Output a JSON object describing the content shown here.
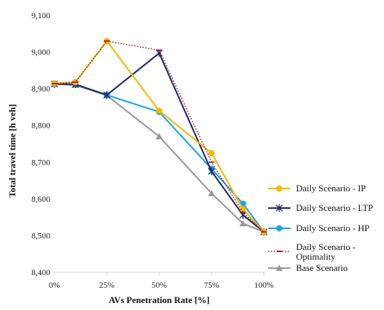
{
  "chart_data": {
    "type": "line",
    "title": "",
    "xlabel": "AVs Penetration Rate [%]",
    "ylabel": "Total travel time [h veh]",
    "ylim": [
      8400,
      9100
    ],
    "y_ticks": [
      "8,400",
      "8,500",
      "8,600",
      "8,700",
      "8,800",
      "8,900",
      "9,000",
      "9,100"
    ],
    "x_ticks": [
      "0%",
      "25%",
      "50%",
      "75%",
      "100%"
    ],
    "xlim": [
      0,
      100
    ],
    "grid": false,
    "legend_position": "right",
    "series": [
      {
        "name": "Daily Scenario - IP",
        "color": "#f5b800",
        "marker": "circle",
        "dash": "solid",
        "x": [
          0,
          10,
          25,
          50,
          75,
          90,
          100
        ],
        "values": [
          8915,
          8918,
          9030,
          8840,
          8725,
          8572,
          8510
        ]
      },
      {
        "name": "Daily Scenario - LTP",
        "color": "#1a2a6c",
        "marker": "star",
        "dash": "solid",
        "x": [
          0,
          10,
          25,
          50,
          75,
          90,
          100
        ],
        "values": [
          8913,
          8912,
          8883,
          8997,
          8675,
          8556,
          8510
        ]
      },
      {
        "name": "Daily Scenario - HP",
        "color": "#1aa7e8",
        "marker": "circle",
        "dash": "solid",
        "x": [
          0,
          10,
          25,
          50,
          75,
          90,
          100
        ],
        "values": [
          8913,
          8912,
          8883,
          8837,
          8682,
          8587,
          8510
        ]
      },
      {
        "name": "Daily Scenario - Optimality",
        "name_lines": [
          "Daily Scenario -",
          "Optimality"
        ],
        "color": "#b0102a",
        "marker": "dash",
        "dash": "dotted",
        "x": [
          0,
          10,
          25,
          50,
          75,
          90,
          100
        ],
        "values": [
          8914,
          8918,
          9030,
          9005,
          8700,
          8563,
          8510
        ]
      },
      {
        "name": "Base Scenario",
        "color": "#999999",
        "marker": "triangle",
        "dash": "solid",
        "x": [
          0,
          10,
          25,
          50,
          75,
          90,
          100
        ],
        "values": [
          8913,
          8910,
          8882,
          8770,
          8615,
          8533,
          8510
        ]
      }
    ]
  }
}
